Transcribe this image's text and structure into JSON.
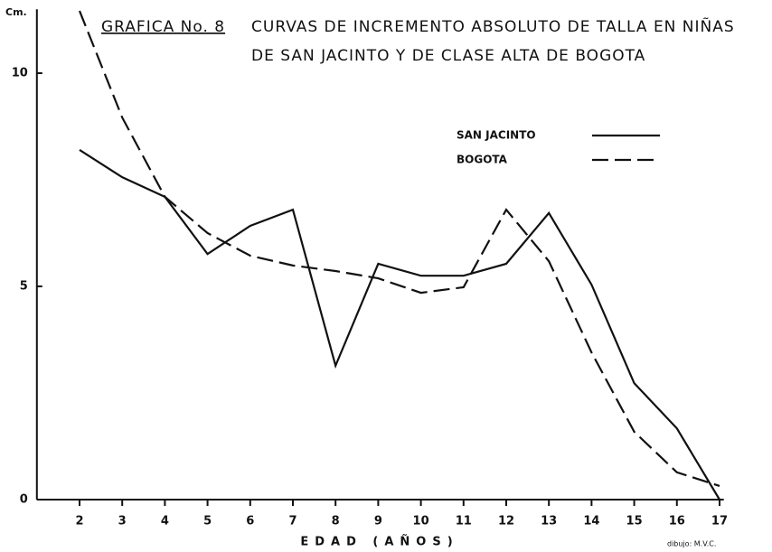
{
  "chart_data": {
    "type": "line",
    "label": "GRAFICA No. 8",
    "title": [
      "CURVAS DE INCREMENTO ABSOLUTO DE TALLA EN NIÑAS",
      "DE SAN JACINTO Y DE CLASE ALTA DE BOGOTA"
    ],
    "y_label": "Cm.",
    "x_label": "EDAD (AÑOS)",
    "credit": "dibujo: M.V.C.",
    "x": [
      2,
      3,
      4,
      5,
      6,
      7,
      8,
      9,
      10,
      11,
      12,
      13,
      14,
      15,
      16,
      17
    ],
    "series": [
      {
        "name": "SAN JACINTO",
        "color": "#111111",
        "style": "solid",
        "values": [
          8.2,
          7.56,
          7.1,
          5.76,
          6.42,
          6.8,
          3.14,
          5.53,
          5.25,
          5.25,
          5.53,
          6.72,
          5.04,
          2.73,
          1.67,
          0.0
        ]
      },
      {
        "name": "BOGOTA",
        "color": "#111111",
        "style": "dashed",
        "values": [
          11.46,
          8.96,
          7.1,
          6.25,
          5.72,
          5.49,
          5.36,
          5.19,
          4.85,
          4.98,
          6.8,
          5.59,
          3.45,
          1.59,
          0.64,
          0.32
        ]
      }
    ],
    "xlim": [
      1,
      17.1
    ],
    "ylim": [
      0,
      11.5
    ],
    "xticks": [
      2,
      3,
      4,
      5,
      6,
      7,
      8,
      9,
      10,
      11,
      12,
      13,
      14,
      15,
      16,
      17
    ],
    "yticks": [
      0,
      5,
      10
    ],
    "grid": false,
    "legend": "upper right"
  }
}
